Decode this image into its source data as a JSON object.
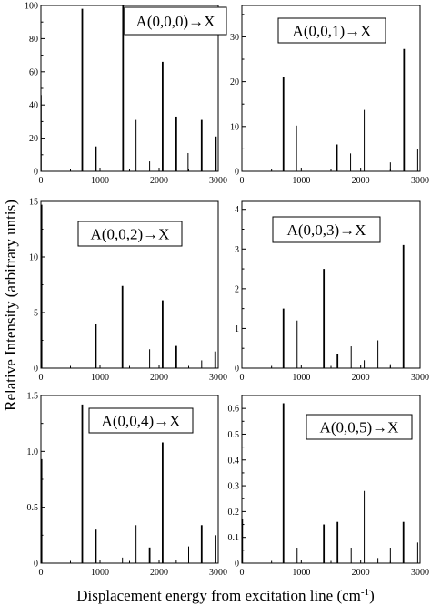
{
  "figure": {
    "ylabel": "Relative Intensity (arbitrary untis)",
    "xlabel": "Displacement energy from excitation line (cm",
    "xlabel_superscript": "-1",
    "xlabel_suffix": ")"
  },
  "chart_data": [
    {
      "type": "bar",
      "title": "A(0,0,0)→X",
      "xlim": [
        0,
        3000
      ],
      "ylim": [
        0,
        100
      ],
      "xticks": [
        0,
        1000,
        2000,
        3000
      ],
      "yticks": [
        0,
        20,
        40,
        60,
        80,
        100
      ],
      "x": [
        5,
        700,
        930,
        1390,
        1610,
        1840,
        2060,
        2290,
        2490,
        2720,
        2960
      ],
      "values": [
        46,
        98,
        15,
        100,
        31,
        6,
        66,
        33,
        11,
        31,
        21
      ],
      "weights": [
        "thin",
        "bold",
        "bold",
        "bold",
        "thin",
        "thin",
        "bold",
        "bold",
        "thin",
        "bold",
        "bold"
      ]
    },
    {
      "type": "bar",
      "title": "A(0,0,1)→X",
      "xlim": [
        0,
        3000
      ],
      "ylim": [
        0,
        37
      ],
      "xticks": [
        0,
        1000,
        2000,
        3000
      ],
      "yticks": [
        0,
        10,
        20,
        30
      ],
      "x": [
        700,
        920,
        1600,
        1830,
        2060,
        2500,
        2730,
        2960
      ],
      "values": [
        21,
        10.2,
        6,
        4,
        13.7,
        2,
        27.3,
        5
      ],
      "weights": [
        "bold",
        "thin",
        "bold",
        "thin",
        "thin",
        "thin",
        "bold",
        "thin"
      ]
    },
    {
      "type": "bar",
      "title": "A(0,0,2)→X",
      "xlim": [
        0,
        3000
      ],
      "ylim": [
        0,
        15
      ],
      "xticks": [
        0,
        1000,
        2000,
        3000
      ],
      "yticks": [
        0,
        5,
        10,
        15
      ],
      "x": [
        10,
        930,
        1380,
        1840,
        2060,
        2290,
        2720,
        2950
      ],
      "values": [
        14.7,
        4,
        7.4,
        1.7,
        6.1,
        2,
        0.7,
        1.5
      ],
      "weights": [
        "bold",
        "bold",
        "bold",
        "thin",
        "bold",
        "bold",
        "thin",
        "bold"
      ]
    },
    {
      "type": "bar",
      "title": "A(0,0,3)→X",
      "xlim": [
        0,
        3000
      ],
      "ylim": [
        0,
        4.2
      ],
      "xticks": [
        0,
        1000,
        2000,
        3000
      ],
      "yticks": [
        0,
        1,
        2,
        3,
        4
      ],
      "x": [
        700,
        930,
        1380,
        1610,
        1840,
        2060,
        2290,
        2500,
        2720
      ],
      "values": [
        1.5,
        1.2,
        2.5,
        0.35,
        0.55,
        0.2,
        0.7,
        0.1,
        3.1
      ],
      "weights": [
        "bold",
        "thin",
        "bold",
        "bold",
        "thin",
        "thin",
        "thin",
        "thin",
        "bold"
      ]
    },
    {
      "type": "bar",
      "title": "A(0,0,4)→X",
      "xlim": [
        0,
        3000
      ],
      "ylim": [
        0,
        1.5
      ],
      "xticks": [
        0,
        1000,
        2000,
        3000
      ],
      "yticks": [
        0,
        0.5,
        1.0,
        1.5
      ],
      "ytick_labels": [
        "0",
        "0.5",
        "1.0",
        "1.5"
      ],
      "x": [
        10,
        700,
        930,
        1380,
        1610,
        1840,
        2060,
        2290,
        2500,
        2720,
        2960
      ],
      "values": [
        0.93,
        1.42,
        0.3,
        0.05,
        0.34,
        0.14,
        1.08,
        0.03,
        0.15,
        0.34,
        0.25
      ],
      "weights": [
        "bold",
        "bold",
        "bold",
        "thin",
        "thin",
        "bold",
        "bold",
        "thin",
        "thin",
        "bold",
        "thin"
      ]
    },
    {
      "type": "bar",
      "title": "A(0,0,5)→X",
      "xlim": [
        0,
        3000
      ],
      "ylim": [
        0,
        0.65
      ],
      "xticks": [
        0,
        1000,
        2000,
        3000
      ],
      "yticks": [
        0,
        0.1,
        0.2,
        0.3,
        0.4,
        0.5,
        0.6
      ],
      "ytick_labels": [
        "0",
        "0.1",
        "0.2",
        "0.3",
        "0.4",
        "0.5",
        "0.6"
      ],
      "x": [
        5,
        700,
        930,
        1380,
        1610,
        1840,
        2060,
        2290,
        2500,
        2720,
        2960
      ],
      "values": [
        0.17,
        0.62,
        0.06,
        0.15,
        0.16,
        0.06,
        0.28,
        0.02,
        0.06,
        0.16,
        0.08
      ],
      "weights": [
        "bold",
        "bold",
        "thin",
        "bold",
        "bold",
        "thin",
        "thin",
        "thin",
        "thin",
        "bold",
        "thin"
      ]
    }
  ]
}
